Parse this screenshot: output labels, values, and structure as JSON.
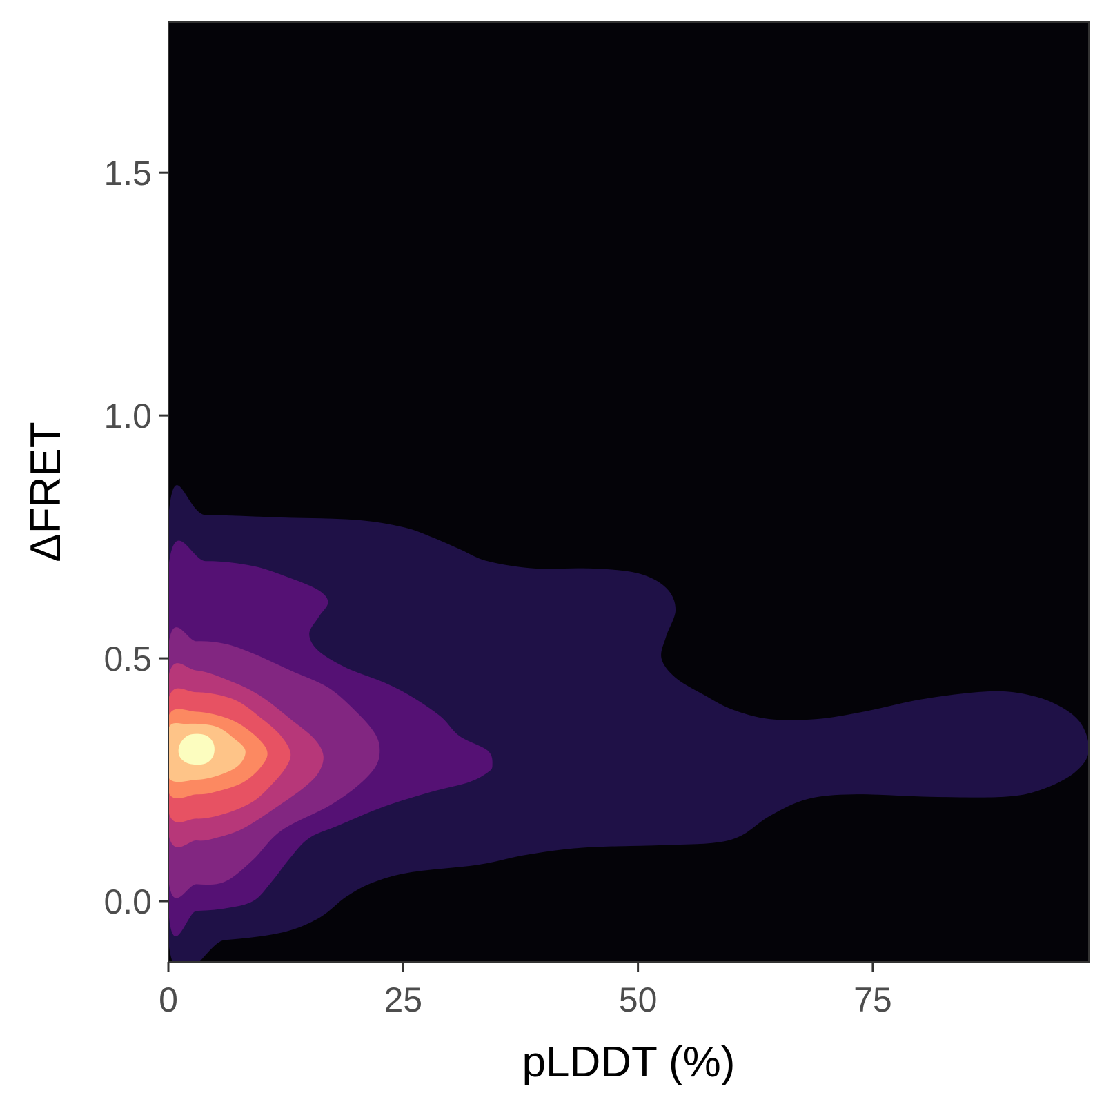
{
  "chart_data": {
    "type": "contour",
    "title": "",
    "xlabel": "pLDDT (%)",
    "ylabel": "ΔFRET",
    "xlim": [
      0,
      98
    ],
    "ylim": [
      -0.125,
      1.81
    ],
    "x_ticks": [
      0,
      25,
      50,
      75
    ],
    "y_ticks": [
      0.0,
      0.5,
      1.0,
      1.5
    ],
    "x_tick_labels": [
      "0",
      "25",
      "50",
      "75"
    ],
    "y_tick_labels": [
      "0.0",
      "0.5",
      "1.0",
      "1.5"
    ],
    "grid": false,
    "legend": "none",
    "background_color": "#040308",
    "density_peak": {
      "x": 2.5,
      "y": 0.31
    },
    "levels": [
      {
        "level": 1,
        "color": "#1f1147",
        "points": [
          [
            0,
            0.79
          ],
          [
            4,
            0.795
          ],
          [
            12,
            0.79
          ],
          [
            20,
            0.785
          ],
          [
            25,
            0.77
          ],
          [
            28,
            0.75
          ],
          [
            31,
            0.725
          ],
          [
            34,
            0.7
          ],
          [
            39,
            0.685
          ],
          [
            45,
            0.685
          ],
          [
            50,
            0.675
          ],
          [
            53,
            0.645
          ],
          [
            54,
            0.6
          ],
          [
            53,
            0.545
          ],
          [
            52.5,
            0.5
          ],
          [
            54,
            0.46
          ],
          [
            57,
            0.425
          ],
          [
            60,
            0.395
          ],
          [
            64,
            0.375
          ],
          [
            69,
            0.375
          ],
          [
            74,
            0.39
          ],
          [
            80,
            0.415
          ],
          [
            86,
            0.43
          ],
          [
            90,
            0.43
          ],
          [
            94,
            0.41
          ],
          [
            97,
            0.37
          ],
          [
            98,
            0.31
          ],
          [
            96.5,
            0.265
          ],
          [
            93,
            0.23
          ],
          [
            89,
            0.215
          ],
          [
            81,
            0.215
          ],
          [
            73,
            0.22
          ],
          [
            68,
            0.21
          ],
          [
            64,
            0.175
          ],
          [
            61,
            0.135
          ],
          [
            58,
            0.12
          ],
          [
            52,
            0.115
          ],
          [
            44,
            0.11
          ],
          [
            38,
            0.095
          ],
          [
            33,
            0.075
          ],
          [
            26,
            0.06
          ],
          [
            22,
            0.04
          ],
          [
            19,
            0.01
          ],
          [
            16,
            -0.035
          ],
          [
            12,
            -0.065
          ],
          [
            6,
            -0.08
          ],
          [
            0,
            -0.085
          ]
        ]
      },
      {
        "level": 2,
        "color": "#551174",
        "points": [
          [
            0,
            0.685
          ],
          [
            4,
            0.7
          ],
          [
            9,
            0.69
          ],
          [
            13,
            0.665
          ],
          [
            16,
            0.64
          ],
          [
            17,
            0.615
          ],
          [
            16,
            0.585
          ],
          [
            15,
            0.55
          ],
          [
            16,
            0.515
          ],
          [
            19,
            0.48
          ],
          [
            23,
            0.45
          ],
          [
            26,
            0.42
          ],
          [
            29,
            0.38
          ],
          [
            31,
            0.34
          ],
          [
            34,
            0.31
          ],
          [
            34.5,
            0.28
          ],
          [
            34,
            0.265
          ],
          [
            32,
            0.245
          ],
          [
            28,
            0.225
          ],
          [
            23,
            0.195
          ],
          [
            18,
            0.155
          ],
          [
            15,
            0.13
          ],
          [
            13,
            0.09
          ],
          [
            11,
            0.04
          ],
          [
            9,
            0.0
          ],
          [
            6,
            -0.015
          ],
          [
            3,
            -0.02
          ],
          [
            0,
            -0.02
          ]
        ]
      },
      {
        "level": 3,
        "color": "#822681",
        "points": [
          [
            0,
            0.525
          ],
          [
            3,
            0.535
          ],
          [
            6,
            0.53
          ],
          [
            9,
            0.51
          ],
          [
            13,
            0.475
          ],
          [
            17,
            0.44
          ],
          [
            20,
            0.39
          ],
          [
            22,
            0.345
          ],
          [
            22.5,
            0.31
          ],
          [
            22,
            0.275
          ],
          [
            20,
            0.235
          ],
          [
            17,
            0.195
          ],
          [
            12,
            0.145
          ],
          [
            9,
            0.085
          ],
          [
            6,
            0.04
          ],
          [
            3,
            0.035
          ],
          [
            0,
            0.045
          ]
        ]
      },
      {
        "level": 4,
        "color": "#b73779",
        "points": [
          [
            0,
            0.46
          ],
          [
            3,
            0.475
          ],
          [
            7,
            0.45
          ],
          [
            10,
            0.42
          ],
          [
            13,
            0.375
          ],
          [
            15.5,
            0.335
          ],
          [
            16.5,
            0.3
          ],
          [
            16,
            0.265
          ],
          [
            14.5,
            0.235
          ],
          [
            12,
            0.2
          ],
          [
            8,
            0.15
          ],
          [
            5,
            0.13
          ],
          [
            3,
            0.125
          ],
          [
            0,
            0.14
          ]
        ]
      },
      {
        "level": 5,
        "color": "#e75263",
        "points": [
          [
            0,
            0.415
          ],
          [
            3,
            0.43
          ],
          [
            7,
            0.415
          ],
          [
            10,
            0.375
          ],
          [
            12,
            0.34
          ],
          [
            13,
            0.305
          ],
          [
            12.5,
            0.275
          ],
          [
            11,
            0.24
          ],
          [
            9,
            0.205
          ],
          [
            6,
            0.18
          ],
          [
            3,
            0.17
          ],
          [
            0,
            0.185
          ]
        ]
      },
      {
        "level": 6,
        "color": "#fc8961",
        "points": [
          [
            0,
            0.38
          ],
          [
            3,
            0.39
          ],
          [
            6.5,
            0.375
          ],
          [
            9,
            0.345
          ],
          [
            10.5,
            0.31
          ],
          [
            10,
            0.28
          ],
          [
            8,
            0.245
          ],
          [
            5,
            0.225
          ],
          [
            3,
            0.22
          ],
          [
            0,
            0.225
          ]
        ]
      },
      {
        "level": 7,
        "color": "#fec488",
        "points": [
          [
            0,
            0.355
          ],
          [
            2,
            0.365
          ],
          [
            5,
            0.36
          ],
          [
            7,
            0.335
          ],
          [
            8.2,
            0.31
          ],
          [
            7.5,
            0.28
          ],
          [
            5.5,
            0.26
          ],
          [
            3,
            0.25
          ],
          [
            0,
            0.255
          ]
        ]
      },
      {
        "level": 8,
        "color": "#fcfdbf",
        "points": [
          [
            1.2,
            0.322
          ],
          [
            2.2,
            0.342
          ],
          [
            3.9,
            0.342
          ],
          [
            4.8,
            0.325
          ],
          [
            4.8,
            0.3
          ],
          [
            3.9,
            0.283
          ],
          [
            2.2,
            0.283
          ],
          [
            1.2,
            0.298
          ]
        ]
      }
    ]
  }
}
